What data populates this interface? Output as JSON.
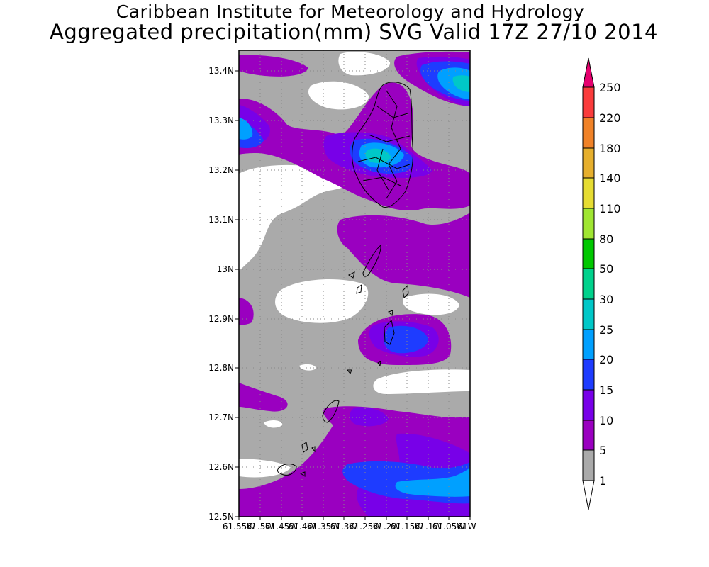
{
  "header": {
    "line1": "Caribbean Institute for Meteorology and Hydrology",
    "line2": "Aggregated precipitation(mm) SVG Valid 17Z 27/10 2014"
  },
  "map": {
    "lat_ticks": [
      "13.4N",
      "13.3N",
      "13.2N",
      "13.1N",
      "13N",
      "12.9N",
      "12.8N",
      "12.7N",
      "12.6N",
      "12.5N"
    ],
    "lon_ticks": [
      "61.55W",
      "61.5W",
      "61.45W",
      "61.4W",
      "61.35W",
      "61.3W",
      "61.25W",
      "61.2W",
      "61.15W",
      "61.1W",
      "61.05W",
      "61W"
    ],
    "lat_range": [
      12.5,
      13.44
    ],
    "lon_range": [
      -61.55,
      -61.0
    ]
  },
  "colorbar": {
    "levels": [
      "1",
      "5",
      "10",
      "15",
      "20",
      "25",
      "30",
      "50",
      "80",
      "110",
      "140",
      "180",
      "220",
      "250"
    ],
    "colors": {
      "1-5": "#aaaaaa",
      "5-10": "#9a00c0",
      "10-15": "#7800e8",
      "15-20": "#1e3cff",
      "20-25": "#00a0ff",
      "25-30": "#00c8c8",
      "30-50": "#00d28c",
      "50-80": "#00c800",
      "80-110": "#a0e632",
      "110-140": "#e6dc32",
      "140-180": "#e6af2d",
      "180-220": "#f08228",
      "220-250": "#fa3c3c",
      ">250": "#e6006e",
      "<1": "#ffffff"
    }
  }
}
